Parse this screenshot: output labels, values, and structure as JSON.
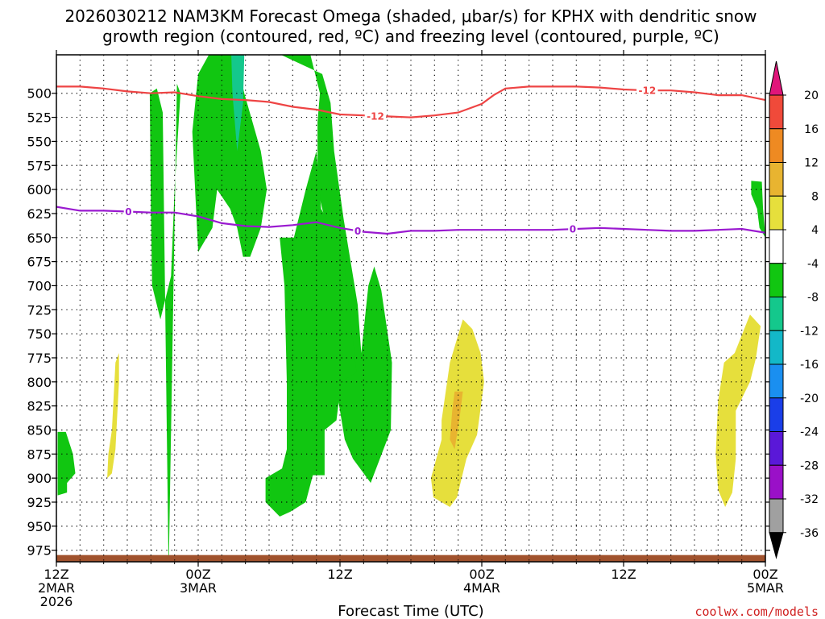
{
  "title": {
    "line1": "2026030212 NAM3KM Forecast Omega (shaded, μbar/s) for KPHX with dendritic snow",
    "line2": "growth region (contoured, red, ºC) and freezing level (contoured, purple, ºC)"
  },
  "credit": "coolwx.com/models",
  "colors": {
    "dgz_line": "#ee4444",
    "freezing_line": "#9a1ad0",
    "ground": "#a0522d",
    "grid": "#000000"
  },
  "chart_data": {
    "type": "time-height cross section",
    "x_label": "Forecast Time (UTC)",
    "x_ticks": [
      {
        "hours": 0,
        "lines": [
          "12Z",
          "2MAR",
          "2026"
        ]
      },
      {
        "hours": 12,
        "lines": [
          "00Z",
          "3MAR"
        ]
      },
      {
        "hours": 24,
        "lines": [
          "12Z"
        ]
      },
      {
        "hours": 36,
        "lines": [
          "00Z",
          "4MAR"
        ]
      },
      {
        "hours": 48,
        "lines": [
          "12Z"
        ]
      },
      {
        "hours": 60,
        "lines": [
          "00Z",
          "5MAR"
        ]
      }
    ],
    "x_range_hours": [
      0,
      60
    ],
    "y_label": "",
    "y_ticks": [
      500,
      525,
      550,
      575,
      600,
      625,
      650,
      675,
      700,
      725,
      750,
      775,
      800,
      825,
      850,
      875,
      900,
      925,
      950,
      975
    ],
    "y_range_hPa": [
      460,
      987
    ],
    "grid": true,
    "colorbar": {
      "labels": [
        "20",
        "16",
        "12",
        "8",
        "4",
        "-4",
        "-8",
        "-12",
        "-16",
        "-20",
        "-24",
        "-28",
        "-32",
        "-36"
      ],
      "bins": [
        {
          "color": "#e0157a",
          "shape": "top-arrow"
        },
        {
          "color": "#f04a3a"
        },
        {
          "color": "#ee8a22"
        },
        {
          "color": "#e8b430"
        },
        {
          "color": "#e6df3c"
        },
        {
          "color": "#ffffff"
        },
        {
          "color": "#11c611"
        },
        {
          "color": "#14c88c"
        },
        {
          "color": "#13b8c8"
        },
        {
          "color": "#1a8ff0"
        },
        {
          "color": "#1a3ee8"
        },
        {
          "color": "#5a18d8"
        },
        {
          "color": "#9a10c8"
        },
        {
          "color": "#a0a0a0"
        },
        {
          "color": "#000000",
          "shape": "bottom-arrow"
        }
      ]
    },
    "dgz_contour": {
      "value_label": "-12",
      "points": [
        [
          0,
          493
        ],
        [
          2,
          493
        ],
        [
          4,
          495
        ],
        [
          6,
          498
        ],
        [
          8,
          500
        ],
        [
          10,
          499
        ],
        [
          12,
          503
        ],
        [
          14,
          506
        ],
        [
          16,
          507
        ],
        [
          18,
          509
        ],
        [
          20,
          514
        ],
        [
          22,
          517
        ],
        [
          24,
          522
        ],
        [
          26,
          523
        ],
        [
          28,
          524
        ],
        [
          30,
          525
        ],
        [
          32,
          523
        ],
        [
          34,
          520
        ],
        [
          36,
          511
        ],
        [
          37,
          502
        ],
        [
          38,
          495
        ],
        [
          40,
          493
        ],
        [
          42,
          493
        ],
        [
          44,
          493
        ],
        [
          46,
          494
        ],
        [
          48,
          496
        ],
        [
          50,
          497
        ],
        [
          52,
          497
        ],
        [
          54,
          499
        ],
        [
          56,
          502
        ],
        [
          58,
          502
        ],
        [
          60,
          507
        ]
      ],
      "label_positions": [
        27,
        50
      ]
    },
    "freezing_contour": {
      "value_label": "0",
      "points": [
        [
          0,
          618
        ],
        [
          2,
          622
        ],
        [
          4,
          622
        ],
        [
          6,
          623
        ],
        [
          8,
          624
        ],
        [
          10,
          624
        ],
        [
          12,
          628
        ],
        [
          14,
          635
        ],
        [
          16,
          638
        ],
        [
          18,
          639
        ],
        [
          20,
          637
        ],
        [
          22,
          634
        ],
        [
          24,
          640
        ],
        [
          26,
          644
        ],
        [
          28,
          646
        ],
        [
          30,
          643
        ],
        [
          32,
          643
        ],
        [
          34,
          642
        ],
        [
          36,
          642
        ],
        [
          38,
          642
        ],
        [
          40,
          642
        ],
        [
          42,
          642
        ],
        [
          44,
          641
        ],
        [
          46,
          640
        ],
        [
          48,
          641
        ],
        [
          50,
          642
        ],
        [
          52,
          643
        ],
        [
          54,
          643
        ],
        [
          56,
          642
        ],
        [
          58,
          641
        ],
        [
          60,
          645
        ]
      ],
      "label_positions": [
        6.1,
        25.5,
        43.7
      ]
    },
    "omega_regions": [
      {
        "bin": "-8 to -4",
        "color": "#11c611",
        "points": [
          [
            9.5,
            1000
          ],
          [
            10.2,
            490
          ],
          [
            10.5,
            500
          ],
          [
            10.0,
            600
          ],
          [
            9.7,
            690
          ],
          [
            8.8,
            735
          ],
          [
            8.1,
            700
          ],
          [
            8.0,
            620
          ],
          [
            7.9,
            500
          ],
          [
            8.5,
            495
          ],
          [
            9.0,
            520
          ]
        ],
        "note": "thin band reaching up"
      },
      {
        "bin": "-8 to -4",
        "color": "#11c611",
        "points": [
          [
            12.9,
            460
          ],
          [
            15.2,
            460
          ],
          [
            15.9,
            500
          ],
          [
            17.3,
            560
          ],
          [
            17.8,
            600
          ],
          [
            17.3,
            640
          ],
          [
            16.4,
            670
          ],
          [
            15.8,
            670
          ],
          [
            15.3,
            640
          ],
          [
            14.7,
            620
          ],
          [
            13.6,
            600
          ],
          [
            13.2,
            640
          ],
          [
            12.0,
            665
          ],
          [
            11.9,
            640
          ],
          [
            11.5,
            540
          ],
          [
            12.0,
            480
          ]
        ]
      },
      {
        "bin": "-12 to -8",
        "color": "#14c88c",
        "points": [
          [
            14.8,
            460
          ],
          [
            15.9,
            460
          ],
          [
            15.8,
            510
          ],
          [
            15.3,
            560
          ],
          [
            14.9,
            500
          ]
        ]
      },
      {
        "bin": "-8 to -4",
        "color": "#11c611",
        "points": [
          [
            19.0,
            460
          ],
          [
            21.5,
            460
          ],
          [
            22.3,
            500
          ],
          [
            22.1,
            530
          ],
          [
            22.1,
            600
          ],
          [
            23.1,
            650
          ],
          [
            24.4,
            700
          ],
          [
            24.8,
            745
          ],
          [
            23.9,
            775
          ],
          [
            23.6,
            800
          ],
          [
            24.4,
            860
          ],
          [
            25.1,
            880
          ],
          [
            26.6,
            905
          ],
          [
            28.3,
            850
          ],
          [
            28.4,
            780
          ],
          [
            27.5,
            705
          ],
          [
            26.9,
            680
          ],
          [
            26.4,
            700
          ],
          [
            25.8,
            770
          ],
          [
            25.5,
            720
          ],
          [
            24.3,
            630
          ],
          [
            23.5,
            560
          ],
          [
            23.2,
            510
          ],
          [
            22.5,
            480
          ]
        ]
      },
      {
        "bin": "-8 to -4",
        "color": "#11c611",
        "points": [
          [
            18.9,
            650
          ],
          [
            20.1,
            650
          ],
          [
            21.1,
            600
          ],
          [
            22.0,
            560
          ],
          [
            22.4,
            620
          ],
          [
            24.2,
            660
          ],
          [
            25.4,
            790
          ],
          [
            24.1,
            800
          ],
          [
            23.7,
            840
          ],
          [
            22.7,
            850
          ],
          [
            22.7,
            897
          ],
          [
            21.7,
            897
          ],
          [
            21.1,
            925
          ],
          [
            19.8,
            935
          ],
          [
            18.9,
            940
          ],
          [
            17.7,
            925
          ],
          [
            17.7,
            900
          ],
          [
            19.1,
            890
          ],
          [
            19.5,
            870
          ],
          [
            19.5,
            800
          ],
          [
            19.3,
            700
          ]
        ]
      },
      {
        "bin": "-8 to -4",
        "color": "#11c611",
        "points": [
          [
            0.1,
            852
          ],
          [
            0.8,
            852
          ],
          [
            1.4,
            875
          ],
          [
            1.6,
            895
          ],
          [
            0.9,
            905
          ],
          [
            0.9,
            915
          ],
          [
            0.1,
            918
          ]
        ]
      },
      {
        "bin": "-8 to -4",
        "color": "#11c611",
        "points": [
          [
            58.8,
            591
          ],
          [
            59.7,
            592
          ],
          [
            59.8,
            620
          ],
          [
            60.0,
            650
          ],
          [
            59.5,
            640
          ],
          [
            59.3,
            620
          ],
          [
            58.8,
            605
          ]
        ]
      },
      {
        "bin": "4 to 8",
        "color": "#e6df3c",
        "points": [
          [
            5.0,
            780
          ],
          [
            5.3,
            770
          ],
          [
            5.3,
            800
          ],
          [
            5.0,
            870
          ],
          [
            4.7,
            895
          ],
          [
            4.3,
            900
          ],
          [
            4.4,
            875
          ],
          [
            4.7,
            850
          ]
        ]
      },
      {
        "bin": "4 to 8",
        "color": "#e6df3c",
        "points": [
          [
            34.4,
            735
          ],
          [
            35.2,
            745
          ],
          [
            35.9,
            770
          ],
          [
            36.2,
            800
          ],
          [
            35.6,
            855
          ],
          [
            34.7,
            880
          ],
          [
            33.9,
            920
          ],
          [
            33.3,
            930
          ],
          [
            31.9,
            920
          ],
          [
            31.7,
            900
          ],
          [
            32.6,
            860
          ],
          [
            32.6,
            840
          ],
          [
            33.3,
            780
          ]
        ]
      },
      {
        "bin": "8 to 12",
        "color": "#e8b430",
        "points": [
          [
            33.7,
            810
          ],
          [
            34.4,
            810
          ],
          [
            34.1,
            840
          ],
          [
            33.7,
            870
          ],
          [
            33.3,
            860
          ],
          [
            33.5,
            830
          ]
        ]
      },
      {
        "bin": "4 to 8",
        "color": "#e6df3c",
        "points": [
          [
            58.7,
            730
          ],
          [
            59.6,
            742
          ],
          [
            59.2,
            775
          ],
          [
            58.7,
            800
          ],
          [
            57.5,
            830
          ],
          [
            57.5,
            880
          ],
          [
            57.2,
            915
          ],
          [
            56.6,
            930
          ],
          [
            56.0,
            912
          ],
          [
            55.8,
            875
          ],
          [
            56.0,
            820
          ],
          [
            56.5,
            780
          ],
          [
            57.4,
            770
          ]
        ]
      }
    ],
    "ground": {
      "top_hPa": 980,
      "bottom_hPa": 987
    }
  }
}
